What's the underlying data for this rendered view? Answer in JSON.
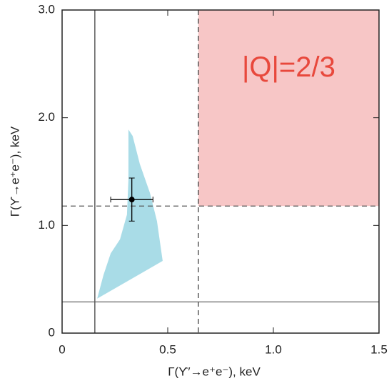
{
  "chart_data": {
    "type": "scatter",
    "xlabel": "Γ(ϒ′→e⁺e⁻),   keV",
    "ylabel": "Γ(ϒ→e⁺e⁻),  keV",
    "xlim": [
      0,
      1.5
    ],
    "ylim": [
      0,
      3.0
    ],
    "xticks": [
      0,
      0.5,
      {
        "value": 1,
        "label": "1.0"
      },
      1.5
    ],
    "yticks": [
      0,
      {
        "value": 1,
        "label": "1.0"
      },
      {
        "value": 2,
        "label": "2.0"
      },
      {
        "value": 3,
        "label": "3.0"
      }
    ],
    "x": [
      0.33
    ],
    "values": [
      1.24
    ],
    "xerr": [
      0.1
    ],
    "yerr": [
      0.2
    ],
    "color": "#000000",
    "vlines": [
      {
        "x": 0.155,
        "style": "solid"
      },
      {
        "x": 0.645,
        "style": "dashed"
      }
    ],
    "hlines": [
      {
        "y": 0.29,
        "style": "solid"
      },
      {
        "y": 1.18,
        "style": "dashed"
      }
    ],
    "regions": [
      {
        "xlim": [
          0.645,
          1.5
        ],
        "ylim": [
          1.18,
          3.0
        ],
        "color": "#f7c6c6",
        "label": "|Q|=2/3",
        "label_color": "#e8483c"
      }
    ],
    "band": {
      "color": "#a9dce7",
      "x": [
        0.314,
        0.334,
        0.368,
        0.416,
        0.449,
        0.476,
        0.166,
        0.196,
        0.23,
        0.274,
        0.307,
        0.314
      ],
      "y": [
        1.89,
        1.83,
        1.57,
        1.3,
        1.04,
        0.67,
        0.32,
        0.54,
        0.74,
        0.87,
        1.1,
        1.43
      ]
    }
  }
}
